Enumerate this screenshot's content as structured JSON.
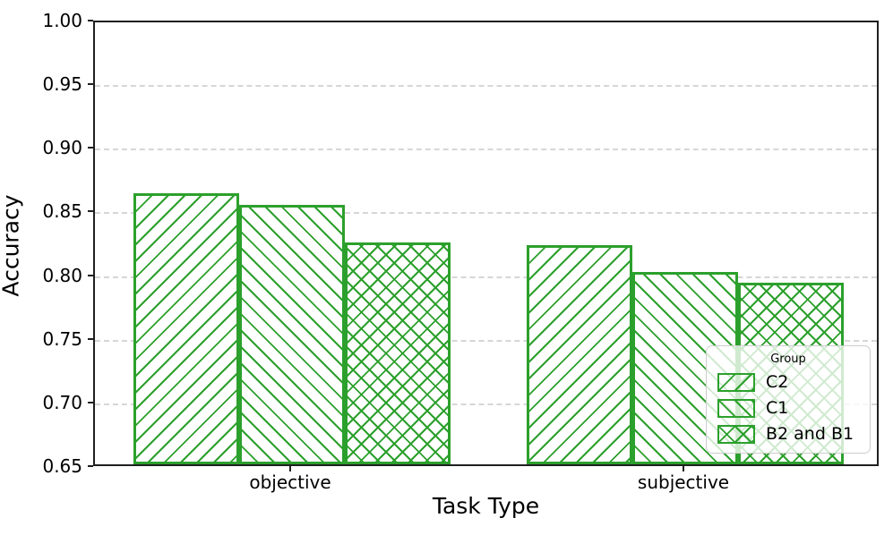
{
  "chart_data": {
    "type": "bar",
    "title": "",
    "xlabel": "Task Type",
    "ylabel": "Accuracy",
    "categories": [
      "objective",
      "subjective"
    ],
    "series": [
      {
        "name": "C2",
        "hatch": "/",
        "values": [
          0.863,
          0.822
        ]
      },
      {
        "name": "C1",
        "hatch": "\\",
        "values": [
          0.854,
          0.801
        ]
      },
      {
        "name": "B2 and B1",
        "hatch": "x",
        "values": [
          0.824,
          0.793
        ]
      }
    ],
    "ylim": [
      0.65,
      1.0
    ],
    "yticks": [
      1.0,
      0.95,
      0.9,
      0.85,
      0.8,
      0.75,
      0.7,
      0.65
    ],
    "ytick_labels": [
      "1.00",
      "0.95",
      "0.90",
      "0.85",
      "0.80",
      "0.75",
      "0.70",
      "0.65"
    ],
    "gridline_values": [
      0.95,
      0.9,
      0.85,
      0.8,
      0.75,
      0.7
    ],
    "grid": "horizontal-dashed",
    "legend": {
      "title": "Group",
      "entries": [
        "C2",
        "C1",
        "B2 and B1"
      ],
      "position": "lower right"
    },
    "colors": {
      "bar_edge": "#2ca02c",
      "bar_hatch": "#2ca02c",
      "bar_face": "#ffffff",
      "grid": "#d6d6d6",
      "axis": "#1f1f1f",
      "text": "#000000"
    }
  }
}
